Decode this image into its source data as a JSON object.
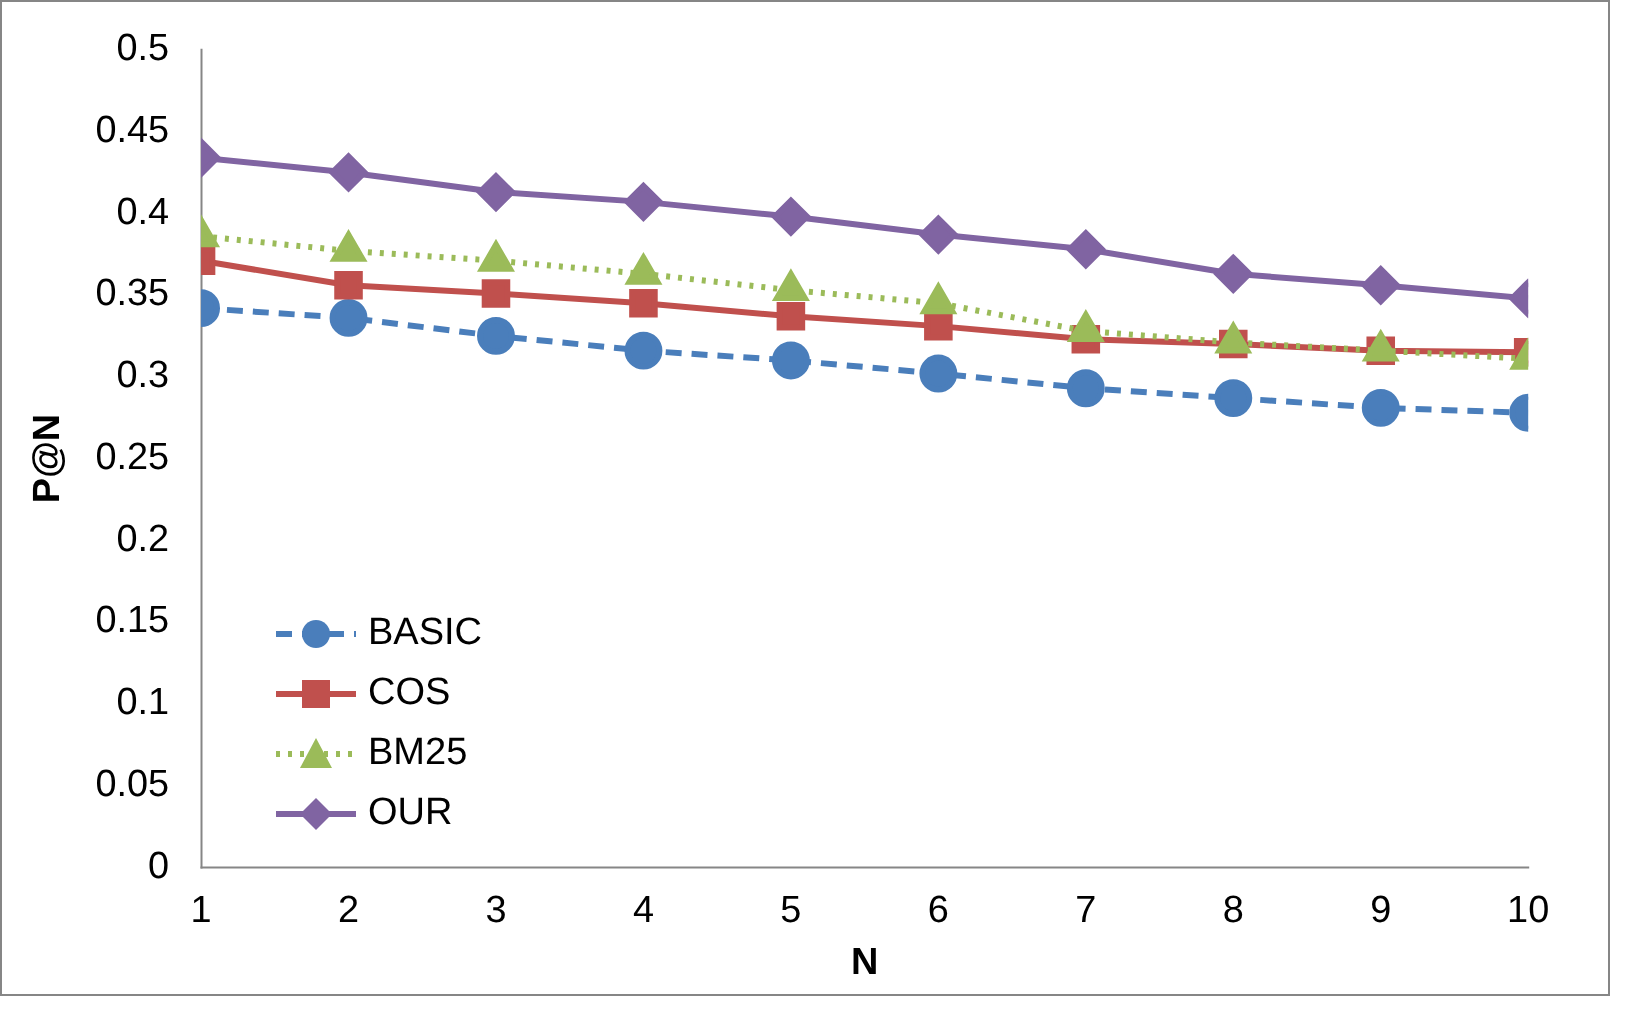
{
  "chart_data": {
    "type": "line",
    "xlabel": "N",
    "ylabel": "P@N",
    "x": [
      1,
      2,
      3,
      4,
      5,
      6,
      7,
      8,
      9,
      10
    ],
    "xlim": [
      1,
      10
    ],
    "xticks": [
      1,
      2,
      3,
      4,
      5,
      6,
      7,
      8,
      9,
      10
    ],
    "ylim": [
      0,
      0.5
    ],
    "yticks": [
      0,
      0.05,
      0.1,
      0.15,
      0.2,
      0.25,
      0.3,
      0.35,
      0.4,
      0.45,
      0.5
    ],
    "grid": false,
    "legend": "bottom left",
    "series": [
      {
        "name": "BASIC",
        "color": "#4a7ebb",
        "marker": "circle",
        "line_style": "dashed",
        "values": [
          0.342,
          0.336,
          0.325,
          0.316,
          0.31,
          0.302,
          0.293,
          0.287,
          0.281,
          0.278
        ]
      },
      {
        "name": "COS",
        "color": "#c0504d",
        "marker": "square",
        "line_style": "solid",
        "values": [
          0.371,
          0.356,
          0.351,
          0.345,
          0.337,
          0.331,
          0.323,
          0.32,
          0.316,
          0.315
        ]
      },
      {
        "name": "BM25",
        "color": "#9bbb59",
        "marker": "triangle",
        "line_style": "dotted",
        "values": [
          0.386,
          0.377,
          0.371,
          0.363,
          0.353,
          0.345,
          0.328,
          0.321,
          0.316,
          0.311
        ]
      },
      {
        "name": "OUR",
        "color": "#8064a2",
        "marker": "diamond",
        "line_style": "solid",
        "values": [
          0.434,
          0.425,
          0.413,
          0.407,
          0.398,
          0.387,
          0.378,
          0.363,
          0.356,
          0.348
        ]
      }
    ]
  }
}
